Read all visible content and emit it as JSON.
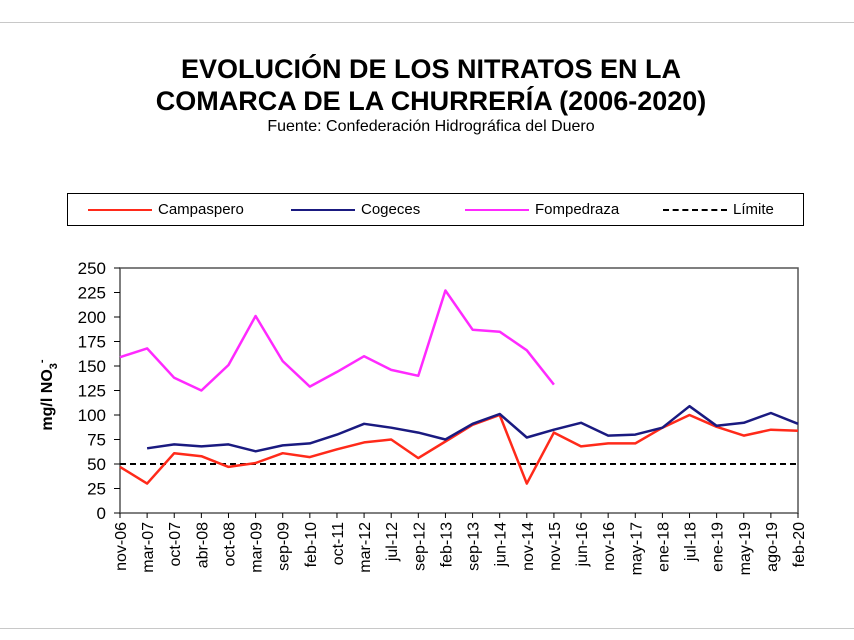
{
  "chart_data": {
    "type": "line",
    "title": "EVOLUCIÓN DE LOS NITRATOS EN LA COMARCA DE LA CHURRERÍA (2006-2020)",
    "title_lines": [
      "EVOLUCIÓN DE LOS NITRATOS EN LA",
      "COMARCA DE LA CHURRERÍA (2006-2020)"
    ],
    "subtitle": "Fuente: Confederación Hidrográfica del Duero",
    "xlabel": "",
    "ylabel": "mg/l NO3-",
    "ylabel_main": "mg/l NO",
    "ylabel_sub": "3",
    "ylabel_sup": "-",
    "ylim": [
      0,
      250
    ],
    "yticks": [
      0,
      25,
      50,
      75,
      100,
      125,
      150,
      175,
      200,
      225,
      250
    ],
    "grid": false,
    "legend_position": "top",
    "categories": [
      "nov-06",
      "mar-07",
      "oct-07",
      "abr-08",
      "oct-08",
      "mar-09",
      "sep-09",
      "feb-10",
      "oct-11",
      "mar-12",
      "jul-12",
      "sep-12",
      "feb-13",
      "sep-13",
      "jun-14",
      "nov-14",
      "nov-15",
      "jun-16",
      "nov-16",
      "may-17",
      "ene-18",
      "jul-18",
      "ene-19",
      "may-19",
      "ago-19",
      "feb-20"
    ],
    "series": [
      {
        "name": "Campaspero",
        "color": "#ff2a1a",
        "dashed": false,
        "values": [
          47,
          30,
          61,
          58,
          47,
          51,
          61,
          57,
          65,
          72,
          75,
          56,
          73,
          90,
          100,
          30,
          82,
          68,
          71,
          71,
          87,
          100,
          88,
          79,
          85,
          84
        ]
      },
      {
        "name": "Cogeces",
        "color": "#1a1a80",
        "dashed": false,
        "values": [
          null,
          66,
          70,
          68,
          70,
          63,
          69,
          71,
          80,
          91,
          87,
          82,
          75,
          91,
          101,
          77,
          85,
          92,
          79,
          80,
          87,
          109,
          89,
          92,
          102,
          91
        ]
      },
      {
        "name": "Fompedraza",
        "color": "#ff2aff",
        "dashed": false,
        "values": [
          159,
          168,
          138,
          125,
          151,
          201,
          155,
          129,
          144,
          160,
          146,
          140,
          227,
          187,
          185,
          166,
          131,
          null,
          null,
          null,
          null,
          null,
          null,
          null,
          null,
          null
        ]
      },
      {
        "name": "Límite",
        "color": "#000000",
        "dashed": true,
        "values": [
          50,
          50,
          50,
          50,
          50,
          50,
          50,
          50,
          50,
          50,
          50,
          50,
          50,
          50,
          50,
          50,
          50,
          50,
          50,
          50,
          50,
          50,
          50,
          50,
          50,
          50
        ]
      }
    ]
  }
}
